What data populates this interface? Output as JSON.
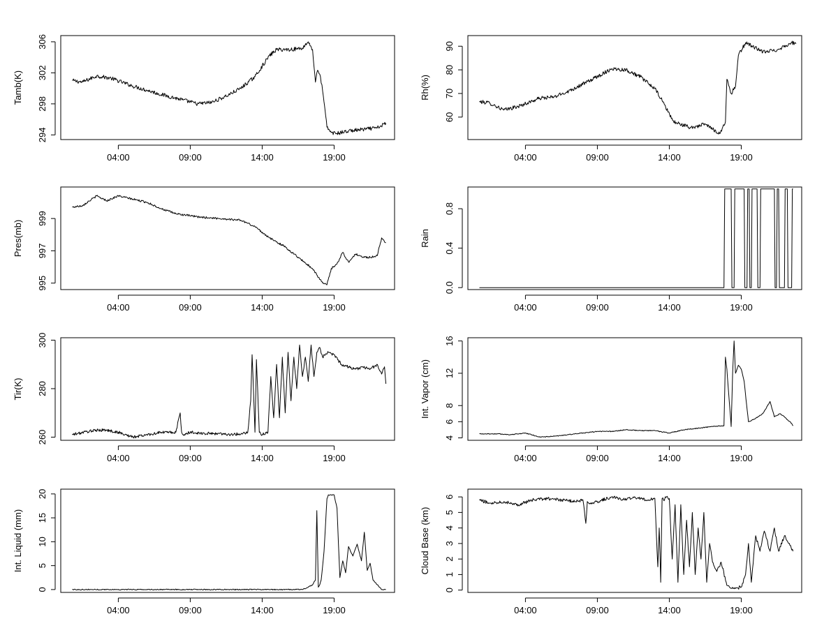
{
  "chart_data": [
    {
      "type": "line",
      "ylabel": "Tamb(K)",
      "xticks": [
        "04:00",
        "09:00",
        "14:00",
        "19:00"
      ],
      "yticks": [
        294,
        298,
        302,
        306
      ],
      "xlim": [
        0.0,
        23.2
      ],
      "ylim": [
        293.4,
        306.8
      ],
      "noise": 0.25,
      "series": [
        {
          "x": [
            0.8,
            1.5,
            2.5,
            3.5,
            5,
            7,
            8.5,
            9.5,
            10.5,
            11.5,
            12.5,
            13.5,
            14.5,
            15,
            16,
            16.8,
            17.2,
            17.5,
            17.7,
            17.8,
            17.9,
            18.05,
            18.25,
            18.5,
            18.8,
            19.2,
            20,
            21,
            22,
            22.6
          ],
          "y": [
            301,
            300.8,
            301.6,
            301.3,
            300.3,
            299.2,
            298.5,
            298,
            298.2,
            299,
            300,
            301.5,
            304.2,
            305,
            305,
            305.2,
            306,
            305,
            300.8,
            302,
            302.2,
            301.5,
            299,
            295,
            294.3,
            294.2,
            294.5,
            294.7,
            294.9,
            295.5
          ]
        }
      ]
    },
    {
      "type": "line",
      "ylabel": "Rh(%)",
      "xticks": [
        "04:00",
        "09:00",
        "14:00",
        "19:00"
      ],
      "yticks": [
        60,
        70,
        80,
        90
      ],
      "xlim": [
        0.0,
        23.2
      ],
      "ylim": [
        50.5,
        94.5
      ],
      "noise": 0.8,
      "series": [
        {
          "x": [
            0.8,
            1.5,
            2.5,
            3.5,
            5,
            6,
            7,
            8.5,
            10,
            11,
            12,
            13,
            13.5,
            14.3,
            15.5,
            16.5,
            17.5,
            17.9,
            18.0,
            18.3,
            18.6,
            18.8,
            19.3,
            19.8,
            20.5,
            21.5,
            22.5,
            22.8
          ],
          "y": [
            66.5,
            66,
            63,
            64.5,
            68,
            68.5,
            71,
            75.5,
            80.5,
            80,
            77,
            72,
            67,
            58,
            55.5,
            57,
            53,
            58,
            76,
            70,
            73,
            86,
            91.5,
            90,
            87.5,
            88.5,
            91.5,
            91
          ]
        }
      ]
    },
    {
      "type": "line",
      "ylabel": "Pres(mb)",
      "xticks": [
        "04:00",
        "09:00",
        "14:00",
        "19:00"
      ],
      "yticks": [
        995,
        997,
        999
      ],
      "yticklabels_show": [
        "995",
        "997",
        "999"
      ],
      "xlim": [
        0.0,
        23.2
      ],
      "ylim": [
        994.6,
        1000.95
      ],
      "noise": 0.06,
      "series": [
        {
          "x": [
            0.8,
            1.5,
            2.5,
            3.2,
            4,
            5,
            6,
            7,
            8,
            9.5,
            11,
            12.5,
            13.5,
            14.5,
            15.5,
            16.5,
            17.5,
            18.2,
            18.5,
            18.8,
            19.2,
            19.6,
            20,
            20.5,
            21,
            21.5,
            22,
            22.3,
            22.6
          ],
          "y": [
            999.7,
            999.8,
            1000.4,
            1000.1,
            1000.4,
            1000.2,
            1000,
            999.6,
            999.3,
            999.1,
            999,
            998.9,
            998.5,
            997.8,
            997.3,
            996.6,
            995.9,
            995,
            994.9,
            995.9,
            996.2,
            996.9,
            996.3,
            996.8,
            996.6,
            996.6,
            996.7,
            997.8,
            997.5
          ]
        }
      ]
    },
    {
      "type": "line",
      "ylabel": "Rain",
      "xticks": [
        "04:00",
        "09:00",
        "14:00",
        "19:00"
      ],
      "yticks": [
        0.0,
        0.4,
        0.8
      ],
      "yticklabels_show": [
        "0.0",
        "0.4",
        "0.8"
      ],
      "xlim": [
        0.0,
        23.2
      ],
      "ylim": [
        -0.02,
        1.02
      ],
      "noise": 0,
      "series": [
        {
          "x": [
            0.8,
            17.8,
            17.85,
            17.9,
            18.3,
            18.35,
            18.5,
            18.55,
            19.2,
            19.25,
            19.4,
            19.45,
            19.55,
            19.6,
            19.7,
            19.75,
            20.1,
            20.15,
            20.3,
            20.35,
            21.3,
            21.35,
            21.45,
            21.5,
            21.6,
            21.65,
            22,
            22.05,
            22.2,
            22.25,
            22.5,
            22.55,
            22.6
          ],
          "y": [
            0,
            0,
            1,
            1,
            1,
            0,
            0,
            1,
            1,
            0,
            0,
            1,
            1,
            0,
            0,
            1,
            1,
            0,
            0,
            1,
            1,
            0,
            0,
            1,
            1,
            0,
            0,
            1,
            1,
            0,
            0,
            1,
            1
          ]
        }
      ]
    },
    {
      "type": "line",
      "ylabel": "Tir(K)",
      "xticks": [
        "04:00",
        "09:00",
        "14:00",
        "19:00"
      ],
      "yticks": [
        260,
        280,
        300
      ],
      "xlim": [
        0.0,
        23.2
      ],
      "ylim": [
        258.7,
        301.0
      ],
      "noise": 0.6,
      "series": [
        {
          "x": [
            0.8,
            2,
            3,
            4,
            5,
            6,
            7,
            8,
            8.3,
            8.4,
            8.5,
            9,
            10,
            11,
            12,
            13,
            13.2,
            13.3,
            13.5,
            13.6,
            13.8,
            14,
            14.4,
            14.6,
            14.8,
            15,
            15.2,
            15.4,
            15.6,
            15.8,
            16,
            16.2,
            16.4,
            16.6,
            16.8,
            17,
            17.2,
            17.4,
            17.6,
            17.8,
            18,
            18.2,
            18.6,
            19,
            19.5,
            20,
            20.5,
            21,
            21.5,
            22,
            22.3,
            22.5,
            22.6
          ],
          "y": [
            261,
            262.5,
            263,
            262,
            260,
            261,
            262,
            262,
            270,
            262,
            261,
            262,
            261.5,
            261.5,
            261,
            262,
            275,
            294,
            262,
            292,
            262,
            261,
            262,
            285,
            268,
            290,
            268,
            293,
            270,
            295,
            275,
            293,
            280,
            298,
            285,
            293,
            283,
            298,
            285,
            295,
            297,
            293,
            295,
            294,
            290,
            289,
            288,
            289,
            288,
            290,
            286,
            289,
            282
          ]
        }
      ]
    },
    {
      "type": "line",
      "ylabel": "Int. Vapor (cm)",
      "xticks": [
        "04:00",
        "09:00",
        "14:00",
        "19:00"
      ],
      "yticks": [
        4,
        6,
        8,
        12,
        16
      ],
      "xlim": [
        0.0,
        23.2
      ],
      "ylim": [
        3.7,
        16.4
      ],
      "noise": 0.05,
      "series": [
        {
          "x": [
            0.8,
            2,
            3,
            4,
            5,
            6,
            7,
            8,
            9,
            10,
            11,
            12,
            13,
            14,
            15,
            16,
            17,
            17.8,
            17.9,
            18.0,
            18.3,
            18.4,
            18.5,
            18.6,
            18.8,
            19,
            19.2,
            19.5,
            20,
            20.5,
            21,
            21.3,
            21.7,
            22,
            22.5,
            22.6
          ],
          "y": [
            4.5,
            4.5,
            4.4,
            4.6,
            4.1,
            4.2,
            4.4,
            4.6,
            4.8,
            4.8,
            5,
            4.9,
            4.9,
            4.6,
            5,
            5.2,
            5.4,
            5.5,
            14,
            12.5,
            5.4,
            12,
            16,
            12,
            13,
            12.5,
            11,
            6,
            6.4,
            7,
            8.5,
            6.6,
            7,
            6.6,
            5.8,
            5.5
          ]
        }
      ]
    },
    {
      "type": "line",
      "ylabel": "Int. Liquid (mm)",
      "xticks": [
        "04:00",
        "09:00",
        "14:00",
        "19:00"
      ],
      "yticks": [
        0,
        5,
        10,
        15,
        20
      ],
      "xlim": [
        0.0,
        23.2
      ],
      "ylim": [
        -0.6,
        21.0
      ],
      "noise": 0.1,
      "series": [
        {
          "x": [
            0.8,
            5,
            10,
            15,
            16.8,
            17.2,
            17.5,
            17.7,
            17.8,
            17.9,
            18.0,
            18.1,
            18.3,
            18.5,
            18.6,
            18.8,
            19,
            19.2,
            19.4,
            19.6,
            19.8,
            20,
            20.3,
            20.6,
            20.9,
            21.1,
            21.3,
            21.5,
            21.7,
            22,
            22.3,
            22.6
          ],
          "y": [
            0,
            0,
            0,
            0,
            0,
            0.5,
            1,
            2,
            16.5,
            0.5,
            1,
            2,
            8,
            19,
            19.8,
            19.8,
            19.8,
            17,
            2.5,
            6,
            3.5,
            9,
            7,
            9.5,
            6,
            12,
            4,
            5.5,
            2,
            1,
            0,
            0
          ]
        }
      ]
    },
    {
      "type": "line",
      "ylabel": "Cloud Base (km)",
      "xticks": [
        "04:00",
        "09:00",
        "14:00",
        "19:00"
      ],
      "yticks": [
        0,
        1,
        2,
        3,
        4,
        5,
        6
      ],
      "xlim": [
        0.0,
        23.2
      ],
      "ylim": [
        -0.15,
        6.5
      ],
      "noise": 0.1,
      "series": [
        {
          "x": [
            0.8,
            1.5,
            2.5,
            3.5,
            4.5,
            5.5,
            6.5,
            7.5,
            8,
            8.2,
            8.3,
            8.5,
            9,
            10,
            11,
            11.5,
            12,
            12.5,
            13,
            13.2,
            13.3,
            13.4,
            13.5,
            13.6,
            13.8,
            14,
            14.2,
            14.4,
            14.6,
            14.8,
            15,
            15.2,
            15.4,
            15.6,
            15.8,
            16,
            16.2,
            16.4,
            16.6,
            16.8,
            17,
            17.3,
            17.6,
            18,
            18.3,
            18.6,
            19,
            19.3,
            19.5,
            19.7,
            20,
            20.3,
            20.6,
            21,
            21.3,
            21.6,
            22,
            22.3,
            22.6
          ],
          "y": [
            5.8,
            5.6,
            5.7,
            5.5,
            5.8,
            5.9,
            5.8,
            5.7,
            5.8,
            4.3,
            5.7,
            5.6,
            5.7,
            6,
            5.8,
            6,
            5.9,
            5.8,
            5.9,
            1.5,
            4,
            0.5,
            5.9,
            5.8,
            6,
            5.9,
            2,
            5.5,
            0.5,
            5.5,
            1,
            4.5,
            1.5,
            5,
            1,
            4,
            2,
            5,
            0.5,
            3,
            1.8,
            1.2,
            1.8,
            0.3,
            0.1,
            0.1,
            0.2,
            1,
            3,
            0.5,
            3.5,
            2.5,
            3.8,
            2.5,
            4,
            2.5,
            3.5,
            3,
            2.5
          ]
        }
      ]
    }
  ]
}
